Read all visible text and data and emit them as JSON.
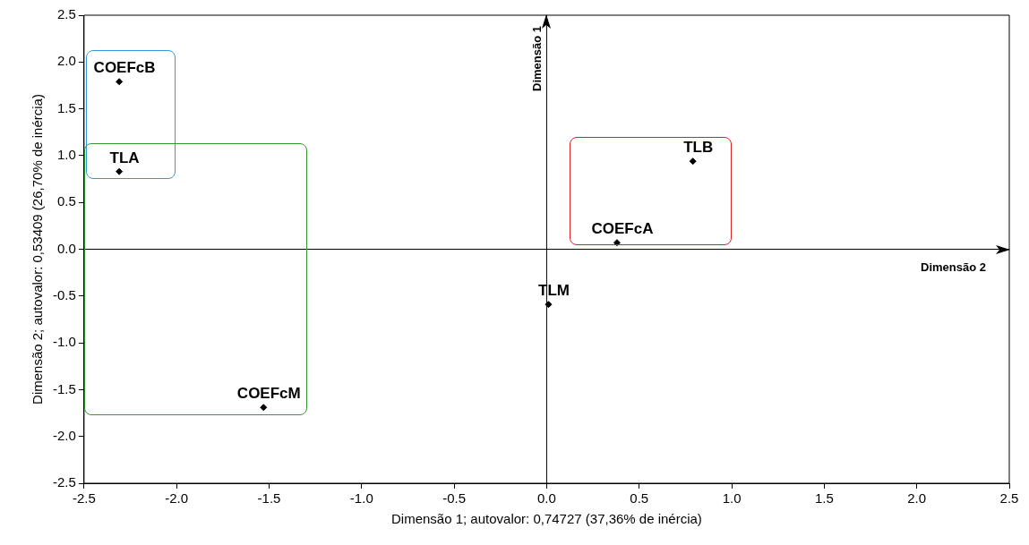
{
  "chart_data": {
    "type": "scatter",
    "xlabel": "Dimensão 1; autovalor: 0,74727 (37,36% de inércia)",
    "ylabel": "Dimensão 2; autovalor: 0,53409 (26,70% de inércia)",
    "xlim": [
      -2.5,
      2.5
    ],
    "ylim": [
      -2.5,
      2.5
    ],
    "xticks": [
      {
        "value": -2.5,
        "label": "-2.5"
      },
      {
        "value": -2,
        "label": "-2.0"
      },
      {
        "value": -1.5,
        "label": "-1.5"
      },
      {
        "value": -1,
        "label": "-1.0"
      },
      {
        "value": -0.5,
        "label": "-0.5"
      },
      {
        "value": 0,
        "label": "0.0"
      },
      {
        "value": 0.5,
        "label": "0.5"
      },
      {
        "value": 1,
        "label": "1.0"
      },
      {
        "value": 1.5,
        "label": "1.5"
      },
      {
        "value": 2,
        "label": "2.0"
      },
      {
        "value": 2.5,
        "label": "2.5"
      }
    ],
    "yticks": [
      {
        "value": -2.5,
        "label": "-2.5"
      },
      {
        "value": -2,
        "label": "-2.0"
      },
      {
        "value": -1.5,
        "label": "-1.5"
      },
      {
        "value": -1,
        "label": "-1.0"
      },
      {
        "value": -0.5,
        "label": "-0.5"
      },
      {
        "value": 0,
        "label": "0.0"
      },
      {
        "value": 0.5,
        "label": "0.5"
      },
      {
        "value": 1,
        "label": "1.0"
      },
      {
        "value": 1.5,
        "label": "1.5"
      },
      {
        "value": 2,
        "label": "2.0"
      },
      {
        "value": 2.5,
        "label": "2.5"
      }
    ],
    "series": [
      {
        "name": "COEFcB",
        "color": "#000000",
        "x": [
          -2.31
        ],
        "values": [
          1.79
        ]
      },
      {
        "name": "TLA",
        "color": "#000000",
        "x": [
          -2.31
        ],
        "values": [
          0.83
        ]
      },
      {
        "name": "TLB",
        "color": "#000000",
        "x": [
          0.79
        ],
        "values": [
          0.94
        ]
      },
      {
        "name": "COEFcA",
        "color": "#000000",
        "x": [
          0.38
        ],
        "values": [
          0.07
        ]
      },
      {
        "name": "TLM",
        "color": "#000000",
        "x": [
          0.01
        ],
        "values": [
          -0.59
        ]
      },
      {
        "name": "COEFcM",
        "color": "#000000",
        "x": [
          -1.53
        ],
        "values": [
          -1.69
        ]
      }
    ],
    "ref_lines": [
      {
        "axis": "x",
        "value": 0,
        "label": "Dimensão 1",
        "color": "#000000"
      },
      {
        "axis": "y",
        "value": 0,
        "label": "Dimensão 2",
        "color": "#000000"
      }
    ],
    "marker": "diamond",
    "grid": false,
    "legend": false
  }
}
